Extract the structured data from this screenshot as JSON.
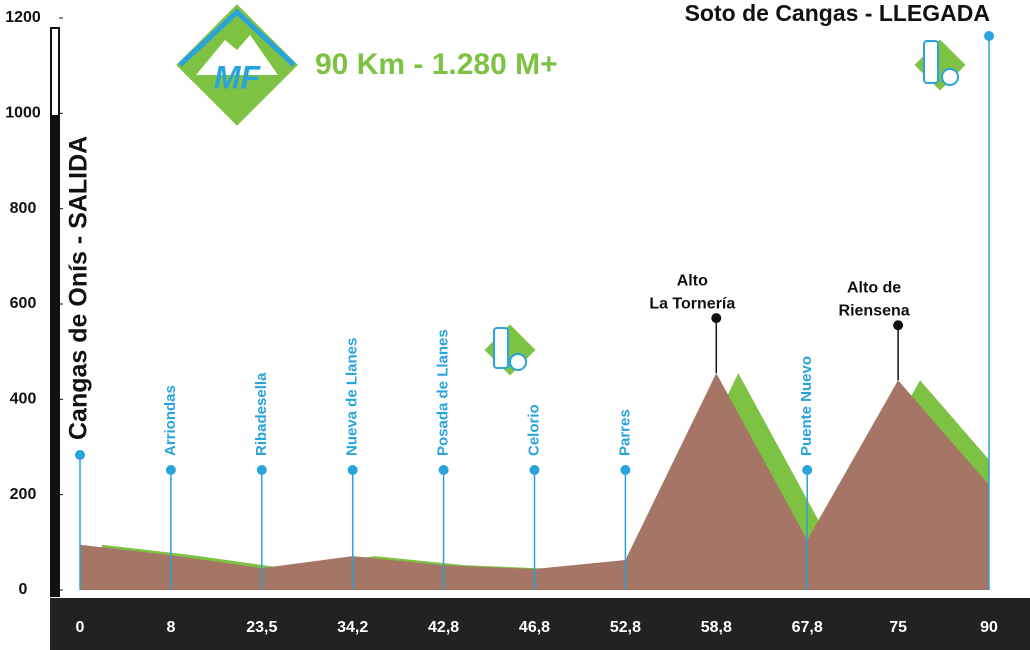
{
  "chart_data": {
    "type": "area",
    "title": "90 Km - 1.280 M+",
    "logo": "MF",
    "start_label": "Cangas de Onís - SALIDA",
    "finish_label": "Soto de Cangas - LLEGADA",
    "categories": [
      "0",
      "8",
      "23,5",
      "34,2",
      "42,8",
      "46,8",
      "52,8",
      "58,8",
      "67,8",
      "75",
      "90"
    ],
    "values": [
      95,
      73,
      46,
      71,
      52,
      44,
      63,
      455,
      105,
      440,
      220
    ],
    "color": "#a57565",
    "shadow_color": "#7dc242",
    "marker_color": "#29a3dc",
    "markers": [
      null,
      "Arriondas",
      "Ribadesella",
      "Nueva de Llanes",
      "Posada de Llanes",
      "Celorio",
      "Parres",
      null,
      "Puente Nuevo",
      null,
      null
    ],
    "summits": [
      null,
      null,
      null,
      null,
      null,
      null,
      null,
      [
        "Alto",
        "La Tornería"
      ],
      null,
      [
        "Alto de",
        "Riensena"
      ],
      null
    ],
    "ylim": [
      0,
      1200
    ],
    "yticks": [
      0,
      200,
      400,
      600,
      800,
      1000,
      1200
    ],
    "grid": false
  }
}
